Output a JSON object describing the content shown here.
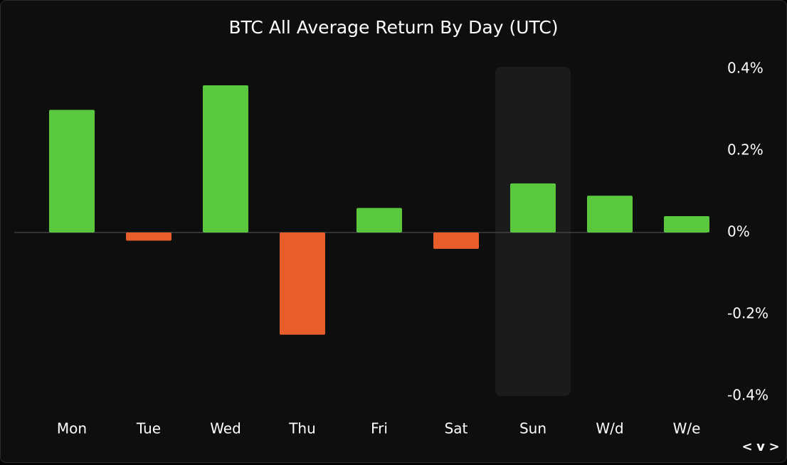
{
  "chart_data": {
    "type": "bar",
    "title": "BTC All Average Return By Day (UTC)",
    "categories": [
      "Mon",
      "Tue",
      "Wed",
      "Thu",
      "Fri",
      "Sat",
      "Sun",
      "W/d",
      "W/e"
    ],
    "values": [
      0.3,
      -0.02,
      0.36,
      -0.25,
      0.06,
      -0.04,
      0.12,
      0.09,
      0.04
    ],
    "positive_color": "#5ac83e",
    "negative_color": "#e85d2a",
    "highlight": "Sun",
    "ylim": [
      -0.4,
      0.4
    ],
    "yticks": [
      {
        "value": 0.4,
        "label": "0.4%"
      },
      {
        "value": 0.2,
        "label": "0.2%"
      },
      {
        "value": 0,
        "label": "0%"
      },
      {
        "value": -0.2,
        "label": "-0.2%"
      },
      {
        "value": -0.4,
        "label": "-0.4%"
      }
    ],
    "nav": [
      "<",
      "v",
      ">"
    ]
  }
}
